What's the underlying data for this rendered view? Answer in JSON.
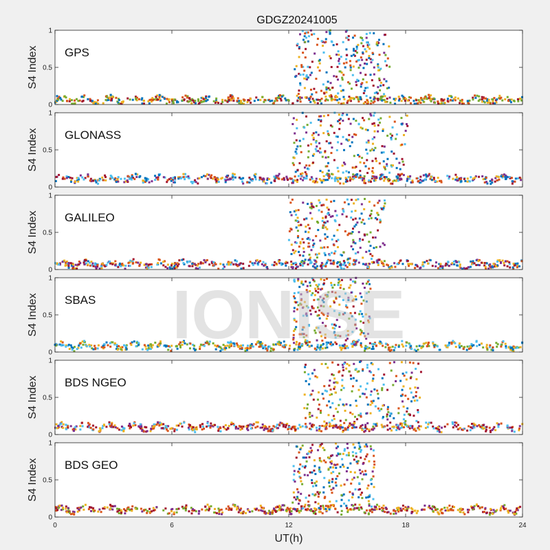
{
  "figure": {
    "title": "GDGZ20241005",
    "xlabel": "UT(h)",
    "watermark": "IONISE"
  },
  "chart_data": {
    "type": "scatter",
    "title": "GDGZ20241005",
    "xlabel": "UT(h)",
    "ylabel": "S4 Index",
    "xlim": [
      0,
      24
    ],
    "xticks": [
      "0",
      "6",
      "12",
      "18",
      "24"
    ],
    "ylim": [
      0,
      1
    ],
    "yticks": [
      "0",
      "0.5",
      "1"
    ],
    "grid": false,
    "colors": [
      "#0072BD",
      "#D95319",
      "#EDB120",
      "#7E2F8E",
      "#77AC30",
      "#4DBEEE",
      "#A2142F"
    ],
    "panels": [
      {
        "name": "GPS",
        "baseline": 0.06,
        "baseline_colors": [
          0,
          1,
          2,
          4,
          6
        ],
        "scintillation": {
          "start": 12.3,
          "end": 17.2,
          "peak": 1.0
        },
        "bursts": [
          {
            "color": 5,
            "x": [
              12.6,
              12.9,
              13.3,
              13.8,
              14.2,
              14.6,
              15.0,
              15.5,
              16.0,
              16.3,
              16.6
            ],
            "y": [
              0.4,
              0.9,
              0.95,
              0.7,
              0.85,
              0.55,
              0.9,
              0.75,
              0.95,
              0.6,
              0.5
            ]
          },
          {
            "color": 0,
            "x": [
              13.0,
              13.6,
              14.3,
              14.9,
              15.3,
              15.8,
              16.2
            ],
            "y": [
              0.85,
              0.6,
              0.8,
              0.5,
              0.9,
              0.7,
              0.4
            ]
          },
          {
            "color": 2,
            "x": [
              12.8,
              13.5,
              14.1,
              16.0
            ],
            "y": [
              0.35,
              0.5,
              0.65,
              0.3
            ]
          }
        ]
      },
      {
        "name": "GLONASS",
        "baseline": 0.11,
        "baseline_colors": [
          2,
          3,
          1,
          0,
          6,
          5
        ],
        "scintillation": {
          "start": 12.2,
          "end": 18.1,
          "peak": 1.0
        },
        "bursts": [
          {
            "color": 5,
            "x": [
              12.4,
              12.8,
              13.4,
              14.0,
              15.6,
              16.0
            ],
            "y": [
              0.45,
              0.8,
              0.6,
              0.75,
              0.85,
              0.6
            ]
          },
          {
            "color": 6,
            "x": [
              12.9,
              14.6,
              15.1,
              16.3,
              16.8,
              17.4,
              17.9
            ],
            "y": [
              0.95,
              0.9,
              0.7,
              0.85,
              0.55,
              0.45,
              0.3
            ]
          },
          {
            "color": 2,
            "x": [
              15.7,
              16.1,
              16.5
            ],
            "y": [
              0.8,
              0.6,
              0.35
            ]
          },
          {
            "color": 4,
            "x": [
              12.6,
              13.0
            ],
            "y": [
              0.55,
              0.4
            ]
          }
        ]
      },
      {
        "name": "GALILEO",
        "baseline": 0.07,
        "baseline_colors": [
          0,
          3,
          2,
          6,
          1,
          5
        ],
        "scintillation": {
          "start": 12.0,
          "end": 17.0,
          "peak": 0.95
        },
        "bursts": [
          {
            "color": 1,
            "x": [
              12.1,
              12.5,
              13.0,
              13.4,
              14.0
            ],
            "y": [
              0.9,
              0.8,
              0.6,
              0.45,
              0.3
            ]
          },
          {
            "color": 5,
            "x": [
              13.6,
              14.0,
              14.4,
              14.8,
              15.2
            ],
            "y": [
              0.9,
              0.75,
              0.65,
              0.8,
              0.7
            ]
          },
          {
            "color": 6,
            "x": [
              13.2,
              13.9,
              14.6,
              15.3,
              15.8
            ],
            "y": [
              0.85,
              0.7,
              0.6,
              0.55,
              0.4
            ]
          },
          {
            "color": 4,
            "x": [
              15.9,
              16.2,
              16.5
            ],
            "y": [
              0.95,
              0.5,
              0.3
            ]
          }
        ]
      },
      {
        "name": "SBAS",
        "baseline": 0.08,
        "baseline_colors": [
          0,
          1,
          2,
          4,
          5
        ],
        "scintillation": {
          "start": 12.2,
          "end": 16.2,
          "peak": 1.0
        },
        "bursts": [
          {
            "color": 5,
            "x": [
              12.3,
              12.5,
              13.0,
              14.2,
              14.8,
              15.3
            ],
            "y": [
              0.95,
              0.8,
              0.6,
              0.9,
              0.7,
              0.95
            ]
          },
          {
            "color": 1,
            "x": [
              13.3,
              13.8,
              14.4,
              15.0
            ],
            "y": [
              0.7,
              0.5,
              0.8,
              0.6
            ]
          },
          {
            "color": 4,
            "x": [
              13.5,
              14.0,
              14.6,
              15.1
            ],
            "y": [
              0.6,
              0.75,
              0.5,
              0.45
            ]
          }
        ]
      },
      {
        "name": "BDS NGEO",
        "baseline": 0.1,
        "baseline_colors": [
          6,
          3,
          1,
          5,
          2
        ],
        "scintillation": {
          "start": 12.8,
          "end": 18.8,
          "peak": 1.0
        },
        "bursts": [
          {
            "color": 4,
            "x": [
              13.9,
              14.3,
              14.7,
              15.1
            ],
            "y": [
              0.95,
              0.8,
              0.6,
              0.85
            ]
          },
          {
            "color": 2,
            "x": [
              14.0,
              14.5,
              15.0,
              15.6,
              16.2
            ],
            "y": [
              0.9,
              0.7,
              0.95,
              0.6,
              0.4
            ]
          },
          {
            "color": 1,
            "x": [
              14.6,
              15.3,
              16.0,
              16.6
            ],
            "y": [
              0.85,
              0.65,
              0.5,
              0.35
            ]
          },
          {
            "color": 0,
            "x": [
              15.2,
              15.8,
              17.2,
              18.4
            ],
            "y": [
              0.75,
              0.55,
              0.25,
              0.5
            ]
          }
        ]
      },
      {
        "name": "BDS GEO",
        "baseline": 0.1,
        "baseline_colors": [
          3,
          4,
          2,
          1,
          6
        ],
        "scintillation": {
          "start": 12.2,
          "end": 16.4,
          "peak": 1.0
        },
        "bursts": [
          {
            "color": 0,
            "x": [
              12.4,
              12.8,
              13.2,
              13.8
            ],
            "y": [
              0.95,
              0.8,
              0.6,
              0.4
            ]
          },
          {
            "color": 3,
            "x": [
              12.9,
              13.5,
              14.4,
              15.0
            ],
            "y": [
              0.8,
              0.9,
              0.7,
              0.5
            ]
          },
          {
            "color": 2,
            "x": [
              13.6,
              14.2,
              14.8,
              15.4,
              15.9
            ],
            "y": [
              0.95,
              0.75,
              0.85,
              0.6,
              0.95
            ]
          },
          {
            "color": 1,
            "x": [
              14.5,
              15.2,
              15.7
            ],
            "y": [
              0.55,
              0.45,
              0.3
            ]
          }
        ]
      }
    ]
  }
}
